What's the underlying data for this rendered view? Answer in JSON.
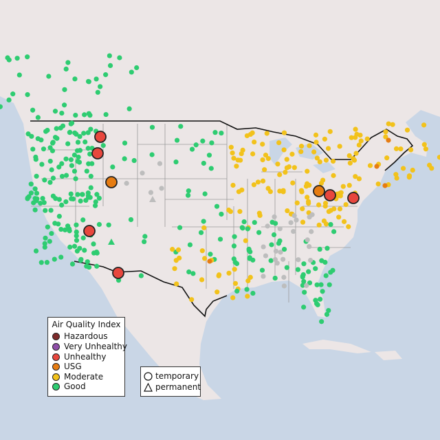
{
  "legend": {
    "title": "Air Quality Index",
    "categories": [
      {
        "label": "Hazardous",
        "color": "#7e2b2b"
      },
      {
        "label": "Very Unhealthy",
        "color": "#8f4fa8"
      },
      {
        "label": "Unhealthy",
        "color": "#e8473e"
      },
      {
        "label": "USG",
        "color": "#e67c12"
      },
      {
        "label": "Moderate",
        "color": "#f2c21b"
      },
      {
        "label": "Good",
        "color": "#2ecc71"
      }
    ]
  },
  "monitor_types": [
    {
      "label": "temporary",
      "shape": "circle"
    },
    {
      "label": "permanent",
      "shape": "triangle"
    }
  ],
  "colors": {
    "ocean": "#c9d6e6",
    "land": "#ece6e6",
    "border": "#111111",
    "state_line": "#9a9a9a",
    "no_data": "#bdbdbd"
  }
}
